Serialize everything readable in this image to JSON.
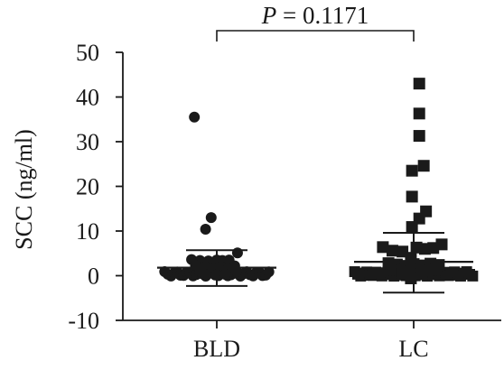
{
  "chart_data": {
    "type": "scatter",
    "title": "",
    "ylabel": "SCC (ng/ml)",
    "xlabel": "",
    "ylim": [
      -10,
      50
    ],
    "yticks": [
      "50",
      "40",
      "30",
      "20",
      "10",
      "0",
      "-10"
    ],
    "yticks_values": [
      50,
      40,
      30,
      20,
      10,
      0,
      -10
    ],
    "categories": [
      "BLD",
      "LC"
    ],
    "grid": false,
    "legend": "none",
    "annotation": {
      "italic": "P",
      "rest": " = 0.1171",
      "between": [
        "BLD",
        "LC"
      ]
    },
    "series": [
      {
        "category": "BLD",
        "marker": "circle",
        "mean": 1.8,
        "sd_lower": -2.3,
        "sd_upper": 5.7,
        "points": [
          [
            -0.4,
            35.5
          ],
          [
            -0.1,
            13.0
          ],
          [
            -0.2,
            10.4
          ],
          [
            0.37,
            5.1
          ],
          [
            -0.45,
            3.6
          ],
          [
            -0.3,
            3.4
          ],
          [
            -0.15,
            3.3
          ],
          [
            0.0,
            3.5
          ],
          [
            0.1,
            3.4
          ],
          [
            0.22,
            3.5
          ],
          [
            -0.38,
            2.3
          ],
          [
            -0.2,
            2.0
          ],
          [
            -0.05,
            1.7
          ],
          [
            0.08,
            2.0
          ],
          [
            0.2,
            1.6
          ],
          [
            0.32,
            2.2
          ],
          [
            -0.3,
            1.0
          ],
          [
            -0.1,
            0.9
          ],
          [
            0.05,
            0.7
          ],
          [
            0.2,
            0.8
          ],
          [
            0.35,
            1.0
          ],
          [
            -0.2,
            0.3
          ],
          [
            0.0,
            0.2
          ],
          [
            0.15,
            0.3
          ]
        ]
      },
      {
        "category": "LC",
        "marker": "square",
        "mean": 3.1,
        "sd_lower": -3.8,
        "sd_upper": 9.6,
        "points": [
          [
            0.1,
            43.0
          ],
          [
            0.1,
            36.3
          ],
          [
            0.1,
            31.3
          ],
          [
            0.18,
            24.6
          ],
          [
            -0.03,
            23.5
          ],
          [
            -0.03,
            17.7
          ],
          [
            0.22,
            14.4
          ],
          [
            0.1,
            12.8
          ],
          [
            -0.03,
            10.9
          ],
          [
            -0.55,
            6.4
          ],
          [
            -0.38,
            5.6
          ],
          [
            -0.2,
            5.4
          ],
          [
            0.05,
            6.3
          ],
          [
            0.2,
            6.0
          ],
          [
            0.35,
            6.2
          ],
          [
            0.5,
            7.0
          ],
          [
            -0.05,
            4.0
          ],
          [
            -0.45,
            2.8
          ],
          [
            -0.3,
            2.5
          ],
          [
            -0.15,
            2.2
          ],
          [
            0.0,
            2.6
          ],
          [
            0.15,
            2.3
          ],
          [
            0.3,
            2.7
          ],
          [
            0.45,
            2.4
          ],
          [
            -0.35,
            1.4
          ],
          [
            -0.2,
            1.2
          ],
          [
            -0.05,
            1.0
          ],
          [
            0.1,
            1.3
          ],
          [
            0.25,
            1.1
          ],
          [
            0.4,
            1.4
          ],
          [
            -0.2,
            0.4
          ],
          [
            0.0,
            0.3
          ],
          [
            0.15,
            0.5
          ],
          [
            -0.05,
            -0.6
          ]
        ]
      }
    ]
  }
}
